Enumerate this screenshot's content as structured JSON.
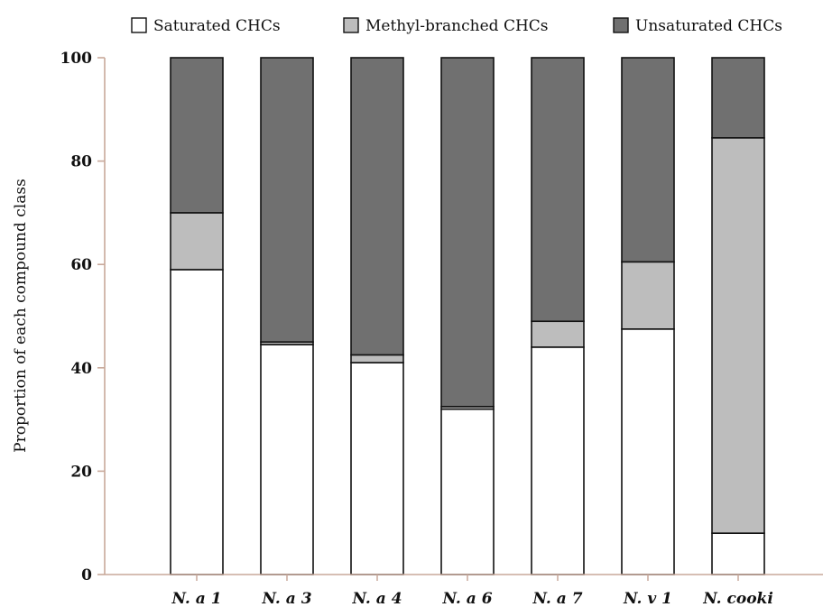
{
  "chart_data": {
    "type": "bar",
    "stacked": true,
    "categories": [
      "N. a 1",
      "N. a 3",
      "N. a 4",
      "N. a 6",
      "N. a 7",
      "N. v 1",
      "N. cooki"
    ],
    "series": [
      {
        "name": "Saturated CHCs",
        "color": "#ffffff",
        "values": [
          59,
          44.5,
          41,
          32,
          44,
          47.5,
          8
        ]
      },
      {
        "name": "Methyl-branched CHCs",
        "color": "#bdbdbd",
        "values": [
          11,
          0.5,
          1.5,
          0.5,
          5,
          13,
          76.5
        ]
      },
      {
        "name": "Unsaturated CHCs",
        "color": "#707070",
        "values": [
          30,
          55,
          57.5,
          67.5,
          51,
          39.5,
          15.5
        ]
      }
    ],
    "xlabel": "",
    "ylabel": "Proportion of each compound class",
    "ylim": [
      0,
      100
    ],
    "yticks": [
      0,
      20,
      40,
      60,
      80,
      100
    ],
    "legend_position": "top",
    "grid": false,
    "axis_color": "#c8a89a"
  }
}
